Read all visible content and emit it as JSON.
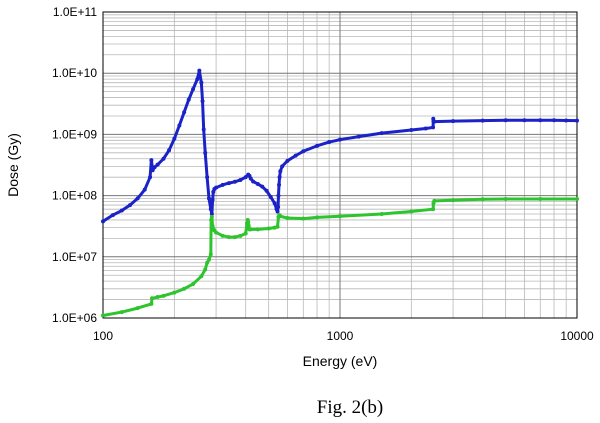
{
  "chart_data": {
    "type": "line",
    "xlabel": "Energy (eV)",
    "ylabel": "Dose (Gy)",
    "x_scale": "log",
    "y_scale": "log",
    "xlim": [
      100,
      10000
    ],
    "ylim": [
      1000000,
      100000000000
    ],
    "grid": true,
    "x_ticks": [
      "100",
      "1000",
      "10000"
    ],
    "y_ticks": [
      "1.0E+06",
      "1.0E+07",
      "1.0E+08",
      "1.0E+09",
      "1.0E+10",
      "1.0E+11"
    ],
    "caption": "Fig. 2(b)",
    "series": [
      {
        "color": "#1a22c8",
        "x": [
          100,
          110,
          120,
          130,
          140,
          150,
          158,
          160,
          162,
          165,
          170,
          180,
          190,
          200,
          210,
          220,
          230,
          240,
          250,
          255,
          260,
          263,
          266,
          270,
          275,
          280,
          285,
          288,
          290,
          292,
          295,
          300,
          320,
          340,
          360,
          380,
          400,
          410,
          415,
          420,
          430,
          450,
          470,
          490,
          510,
          530,
          540,
          545,
          548,
          550,
          553,
          556,
          560,
          570,
          600,
          650,
          700,
          800,
          900,
          1000,
          1200,
          1500,
          2000,
          2300,
          2470,
          2475,
          2480,
          2500,
          3000,
          4000,
          5000,
          6000,
          7000,
          8000,
          9000,
          10000
        ],
        "y": [
          38000000,
          48000000,
          57000000,
          70000000,
          90000000,
          125000000,
          200000000,
          380000000,
          260000000,
          290000000,
          320000000,
          400000000,
          550000000,
          850000000,
          1400000000,
          2300000000,
          3700000000,
          5500000000,
          8000000000,
          11000000000,
          7000000000,
          3500000000,
          1200000000,
          500000000,
          200000000,
          90000000,
          60000000,
          50000000,
          85000000,
          115000000,
          128000000,
          135000000,
          150000000,
          160000000,
          168000000,
          180000000,
          200000000,
          220000000,
          210000000,
          190000000,
          170000000,
          155000000,
          140000000,
          120000000,
          95000000,
          75000000,
          60000000,
          55000000,
          65000000,
          100000000,
          150000000,
          200000000,
          250000000,
          300000000,
          370000000,
          450000000,
          530000000,
          650000000,
          750000000,
          820000000,
          920000000,
          1050000000,
          1180000000,
          1250000000,
          1300000000,
          1800000000,
          1650000000,
          1620000000,
          1650000000,
          1680000000,
          1700000000,
          1700000000,
          1700000000,
          1700000000,
          1690000000,
          1680000000
        ]
      },
      {
        "color": "#2ec42e",
        "x": [
          100,
          120,
          140,
          160,
          161,
          170,
          180,
          200,
          220,
          240,
          260,
          270,
          275,
          280,
          285,
          286,
          288,
          290,
          295,
          300,
          320,
          340,
          360,
          380,
          400,
          405,
          408,
          410,
          412,
          415,
          420,
          450,
          500,
          530,
          545,
          550,
          555,
          560,
          600,
          700,
          800,
          1000,
          1500,
          2000,
          2470,
          2480,
          2500,
          3000,
          4000,
          5000,
          7000,
          10000
        ],
        "y": [
          1100000,
          1250000,
          1450000,
          1700000,
          2100000,
          2200000,
          2300000,
          2600000,
          3000000,
          3600000,
          4800000,
          6200000,
          8000000,
          9000000,
          11000000,
          40000000,
          45000000,
          32000000,
          27000000,
          25000000,
          22000000,
          21000000,
          21000000,
          22000000,
          24000000,
          35000000,
          40000000,
          37000000,
          32000000,
          28000000,
          28000000,
          28000000,
          29000000,
          30000000,
          31000000,
          45000000,
          48000000,
          46000000,
          43000000,
          42000000,
          44000000,
          46000000,
          50000000,
          55000000,
          60000000,
          75000000,
          82000000,
          84000000,
          87000000,
          88000000,
          88000000,
          88000000
        ]
      }
    ]
  }
}
